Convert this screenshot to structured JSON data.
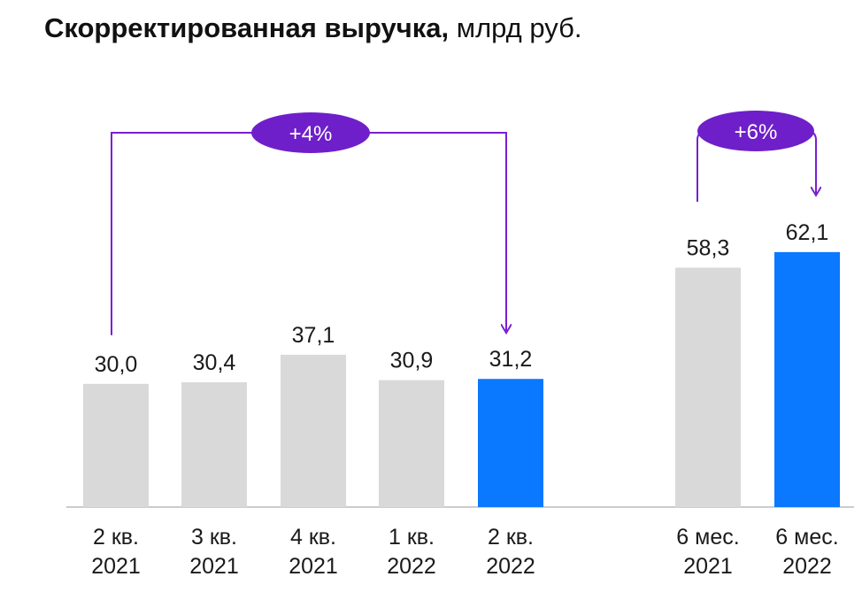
{
  "title": "Скорректированная выручка,",
  "title_unit": "млрд руб.",
  "chart_data": {
    "type": "bar",
    "title": "Скорректированная выручка, млрд руб.",
    "ylim": [
      0,
      66
    ],
    "grid": false,
    "bars": [
      {
        "label_line1": "2 кв.",
        "label_line2": "2021",
        "value": 30.0,
        "value_text": "30,0",
        "color": "#d9d9d9"
      },
      {
        "label_line1": "3 кв.",
        "label_line2": "2021",
        "value": 30.4,
        "value_text": "30,4",
        "color": "#d9d9d9"
      },
      {
        "label_line1": "4 кв.",
        "label_line2": "2021",
        "value": 37.1,
        "value_text": "37,1",
        "color": "#d9d9d9"
      },
      {
        "label_line1": "1 кв.",
        "label_line2": "2022",
        "value": 30.9,
        "value_text": "30,9",
        "color": "#d9d9d9"
      },
      {
        "label_line1": "2 кв.",
        "label_line2": "2022",
        "value": 31.2,
        "value_text": "31,2",
        "color": "#0a78ff"
      },
      {
        "label_line1": "6 мес.",
        "label_line2": "2021",
        "value": 58.3,
        "value_text": "58,3",
        "color": "#d9d9d9"
      },
      {
        "label_line1": "6 мес.",
        "label_line2": "2022",
        "value": 62.1,
        "value_text": "62,1",
        "color": "#0a78ff"
      }
    ],
    "annotations": [
      {
        "text": "+4%",
        "from_index": 0,
        "to_index": 4
      },
      {
        "text": "+6%",
        "from_index": 5,
        "to_index": 6
      }
    ]
  },
  "colors": {
    "grey_bar": "#d9d9d9",
    "highlight_bar": "#0a78ff",
    "accent": "#7a1fd1",
    "badge": "#6f1fc9",
    "baseline": "#cccccc"
  }
}
